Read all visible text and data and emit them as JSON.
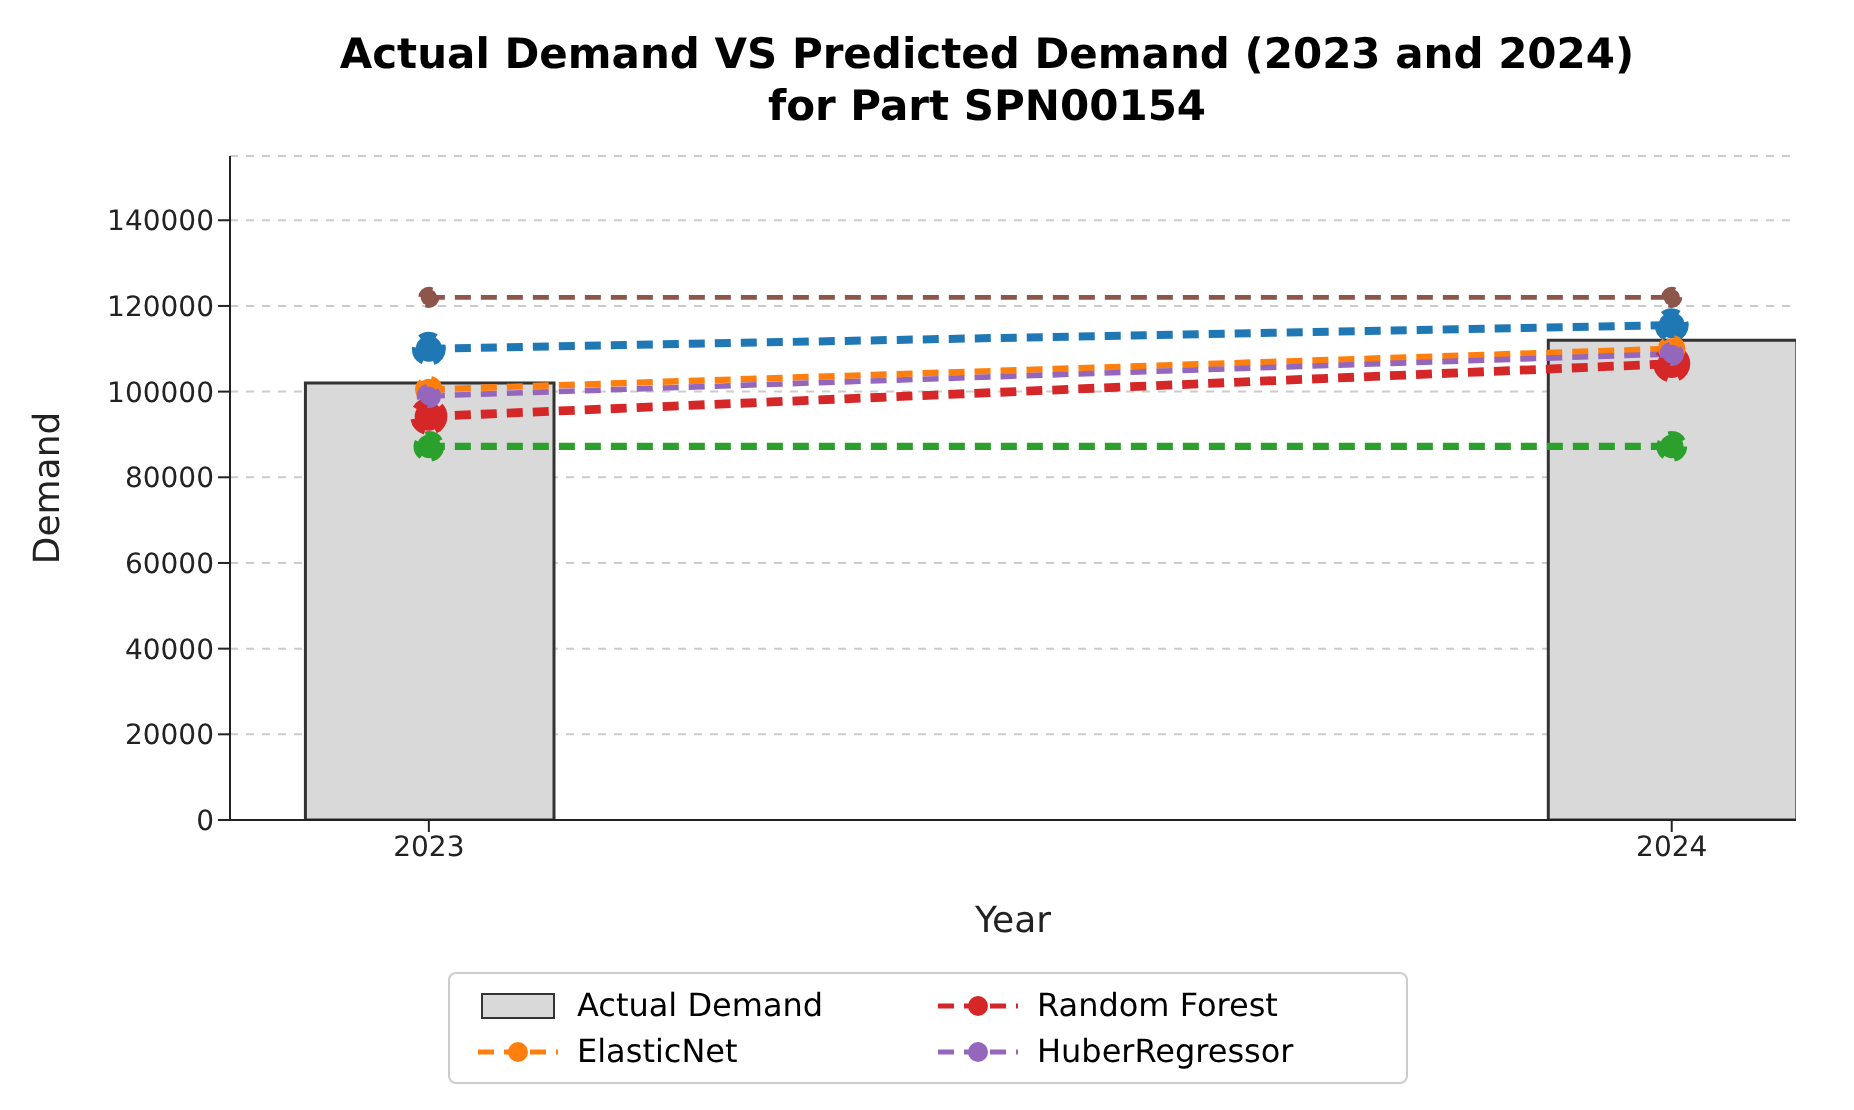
{
  "chart_data": {
    "type": "line",
    "title": "Actual Demand VS Predicted Demand (2023 and 2024)\nfor Part SPN00154",
    "xlabel": "Year",
    "ylabel": "Demand",
    "x": [
      2023,
      2024
    ],
    "xlim": [
      2022.84,
      2024.1
    ],
    "xticks": [
      2023,
      2024
    ],
    "ylim": [
      0,
      155000
    ],
    "yticks": [
      0,
      20000,
      40000,
      60000,
      80000,
      100000,
      120000,
      140000
    ],
    "grid": "y",
    "legend": "bottom",
    "marker": "circle",
    "line_style": "dashed",
    "series": [
      {
        "name": "Actual Demand",
        "type": "bar",
        "color": "#d9d9d9",
        "values": [
          102000,
          112000
        ]
      },
      {
        "name": "Random Forest",
        "color": "#d62728",
        "values": [
          94200,
          106500
        ]
      },
      {
        "color": "#1f77b4",
        "values": [
          110000,
          115500
        ]
      },
      {
        "color": "#2ca02c",
        "values": [
          87200,
          87200
        ]
      },
      {
        "name": "ElasticNet",
        "color": "#ff7f0e",
        "values": [
          100500,
          110000
        ]
      },
      {
        "name": "HuberRegressor",
        "color": "#9467bd",
        "values": [
          99000,
          108800
        ]
      },
      {
        "color": "#8c564b",
        "values": [
          122000,
          122000
        ]
      }
    ]
  }
}
